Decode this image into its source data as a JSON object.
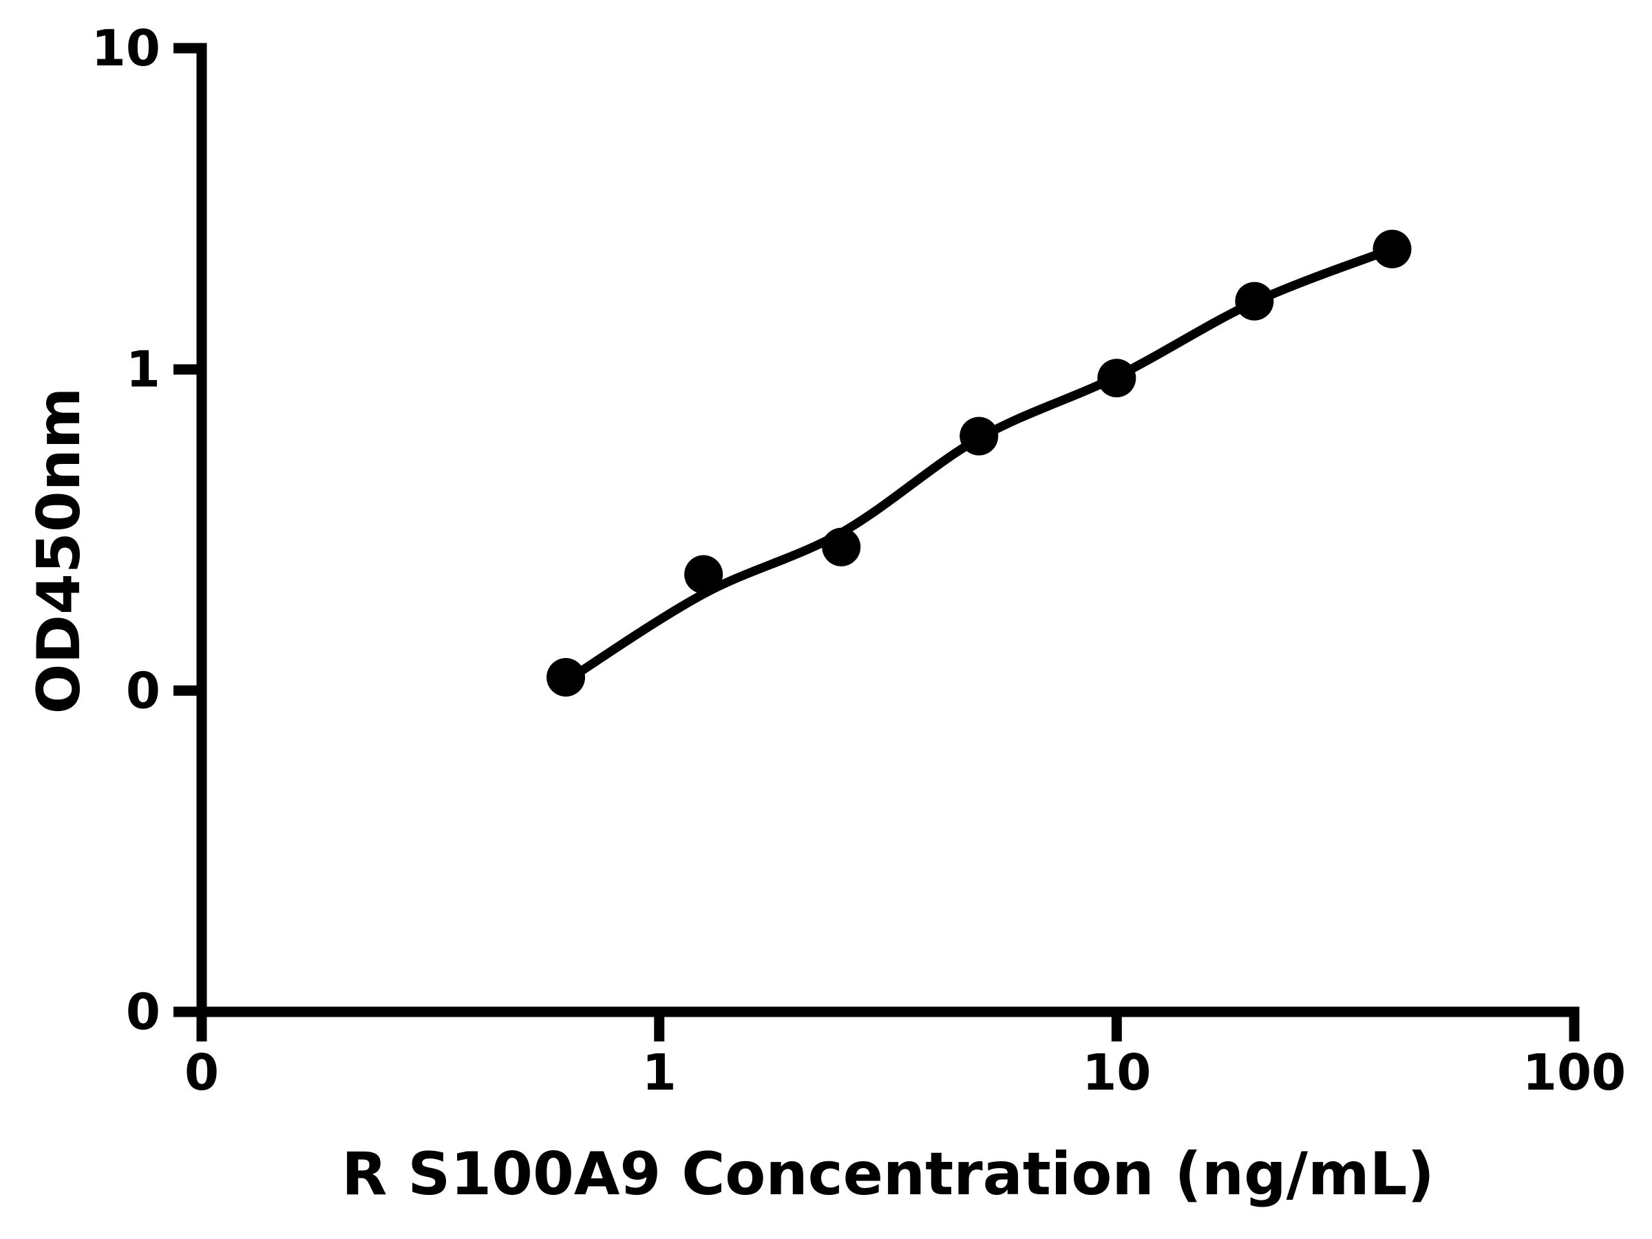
{
  "chart_data": {
    "type": "scatter",
    "subtype": "scatter-with-fit-line",
    "title": "",
    "xlabel": "R S100A9 Concentration (ng/mL)",
    "ylabel": "OD450nm",
    "x_scale": "log",
    "y_scale": "log",
    "x_ticks": [
      "0",
      "1",
      "10",
      "100"
    ],
    "y_ticks": [
      "10",
      "1",
      "0",
      "0"
    ],
    "x_range_decades": 3,
    "y_range_decades": 3,
    "grid": "off",
    "legend": "none",
    "points": {
      "x": [
        0.625,
        1.25,
        2.5,
        5,
        10,
        20,
        40
      ],
      "y": [
        0.11,
        0.23,
        0.28,
        0.62,
        0.94,
        1.63,
        2.37
      ]
    },
    "fit_curve": {
      "x": [
        0.625,
        1.25,
        2.5,
        5,
        10,
        20,
        40
      ],
      "y": [
        0.107,
        0.2,
        0.31,
        0.61,
        0.95,
        1.62,
        2.37
      ]
    },
    "colors": {
      "foreground": "#000000",
      "background": "#ffffff",
      "marker": "#000000",
      "line": "#000000"
    }
  }
}
